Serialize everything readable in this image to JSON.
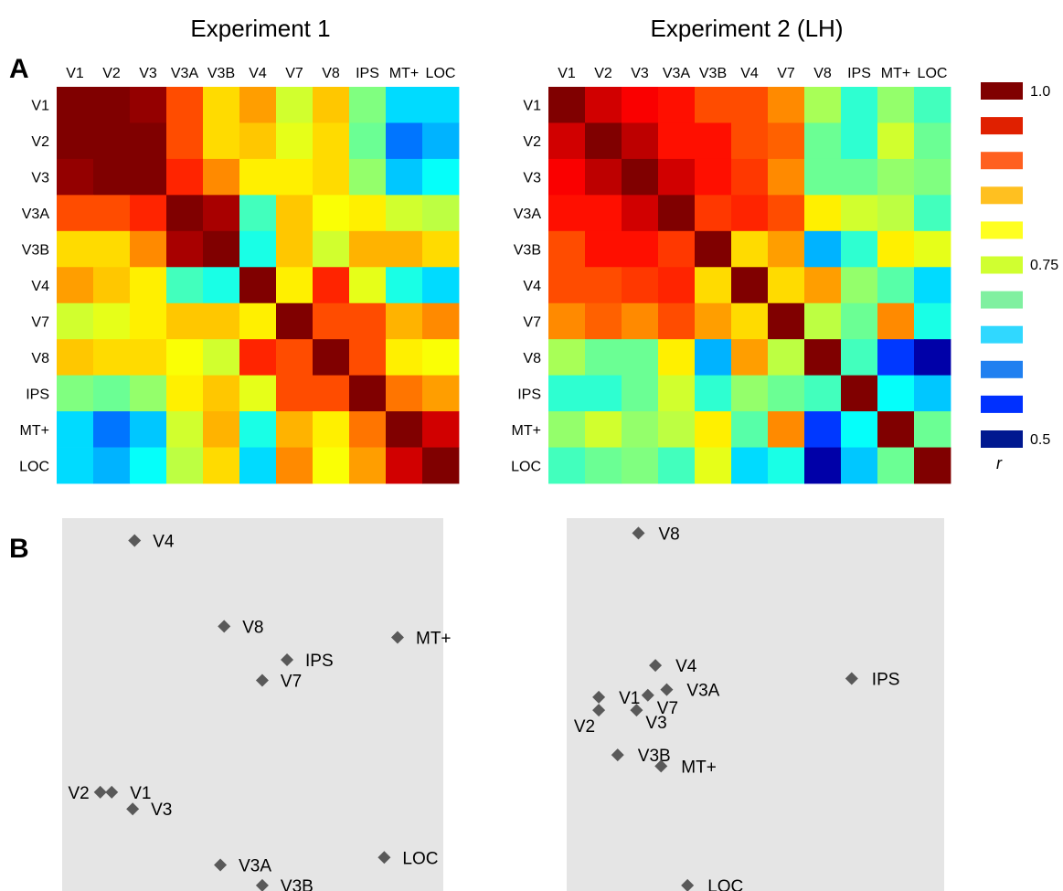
{
  "panel_labels": {
    "a": "A",
    "b": "B"
  },
  "colorbar": {
    "tick_labels": [
      "1.0",
      "0.75",
      "0.5"
    ],
    "unit": "r",
    "range": [
      0.5,
      1.0
    ],
    "swatches": [
      "#800000",
      "#e02000",
      "#ff6020",
      "#ffc020",
      "#ffff20",
      "#d0ff30",
      "#80f0a0",
      "#30d8ff",
      "#2080f0",
      "#0030ff",
      "#001890"
    ]
  },
  "chart_data": [
    {
      "type": "heatmap",
      "title": "Experiment 1",
      "regions": [
        "V1",
        "V2",
        "V3",
        "V3A",
        "V3B",
        "V4",
        "V7",
        "V8",
        "IPS",
        "MT+",
        "LOC"
      ],
      "value_range": [
        0.5,
        1.0
      ],
      "matrix": [
        [
          1.0,
          1.0,
          0.99,
          0.9,
          0.83,
          0.86,
          0.79,
          0.84,
          0.75,
          0.67,
          0.67
        ],
        [
          1.0,
          1.0,
          1.0,
          0.9,
          0.83,
          0.84,
          0.8,
          0.83,
          0.74,
          0.62,
          0.65
        ],
        [
          0.99,
          1.0,
          1.0,
          0.92,
          0.87,
          0.82,
          0.82,
          0.83,
          0.76,
          0.66,
          0.69
        ],
        [
          0.9,
          0.9,
          0.92,
          1.0,
          0.98,
          0.72,
          0.84,
          0.81,
          0.82,
          0.79,
          0.78
        ],
        [
          0.83,
          0.83,
          0.87,
          0.98,
          1.0,
          0.7,
          0.84,
          0.79,
          0.85,
          0.85,
          0.83
        ],
        [
          0.86,
          0.84,
          0.82,
          0.72,
          0.7,
          1.0,
          0.82,
          0.92,
          0.8,
          0.7,
          0.67
        ],
        [
          0.79,
          0.8,
          0.82,
          0.84,
          0.84,
          0.82,
          1.0,
          0.9,
          0.9,
          0.85,
          0.87
        ],
        [
          0.84,
          0.83,
          0.83,
          0.81,
          0.79,
          0.92,
          0.9,
          1.0,
          0.9,
          0.82,
          0.81
        ],
        [
          0.75,
          0.74,
          0.76,
          0.82,
          0.84,
          0.8,
          0.9,
          0.9,
          1.0,
          0.88,
          0.86
        ],
        [
          0.67,
          0.62,
          0.66,
          0.79,
          0.85,
          0.7,
          0.85,
          0.82,
          0.88,
          1.0,
          0.96
        ],
        [
          0.67,
          0.65,
          0.69,
          0.78,
          0.83,
          0.67,
          0.87,
          0.81,
          0.86,
          0.96,
          1.0
        ]
      ]
    },
    {
      "type": "heatmap",
      "title": "Experiment 2 (LH)",
      "regions": [
        "V1",
        "V2",
        "V3",
        "V3A",
        "V3B",
        "V4",
        "V7",
        "V8",
        "IPS",
        "MT+",
        "LOC"
      ],
      "value_range": [
        0.5,
        1.0
      ],
      "matrix": [
        [
          1.0,
          0.96,
          0.94,
          0.93,
          0.9,
          0.9,
          0.87,
          0.77,
          0.71,
          0.76,
          0.72
        ],
        [
          0.96,
          1.0,
          0.97,
          0.93,
          0.93,
          0.9,
          0.89,
          0.74,
          0.71,
          0.79,
          0.74
        ],
        [
          0.94,
          0.97,
          1.0,
          0.96,
          0.93,
          0.91,
          0.87,
          0.74,
          0.74,
          0.76,
          0.75
        ],
        [
          0.93,
          0.93,
          0.96,
          1.0,
          0.91,
          0.92,
          0.9,
          0.82,
          0.79,
          0.78,
          0.72
        ],
        [
          0.9,
          0.93,
          0.93,
          0.91,
          1.0,
          0.83,
          0.86,
          0.65,
          0.71,
          0.82,
          0.8
        ],
        [
          0.9,
          0.9,
          0.91,
          0.92,
          0.83,
          1.0,
          0.83,
          0.86,
          0.76,
          0.73,
          0.67
        ],
        [
          0.87,
          0.89,
          0.87,
          0.9,
          0.86,
          0.83,
          1.0,
          0.78,
          0.74,
          0.87,
          0.7
        ],
        [
          0.77,
          0.74,
          0.74,
          0.82,
          0.65,
          0.86,
          0.78,
          1.0,
          0.72,
          0.59,
          0.52
        ],
        [
          0.71,
          0.71,
          0.74,
          0.79,
          0.71,
          0.76,
          0.74,
          0.72,
          1.0,
          0.69,
          0.66
        ],
        [
          0.76,
          0.79,
          0.76,
          0.78,
          0.82,
          0.73,
          0.87,
          0.59,
          0.69,
          1.0,
          0.74
        ],
        [
          0.72,
          0.74,
          0.75,
          0.72,
          0.8,
          0.67,
          0.7,
          0.52,
          0.66,
          0.74,
          1.0
        ]
      ]
    },
    {
      "type": "scatter",
      "title": "",
      "xlabel": "",
      "ylabel": "",
      "xlim": [
        0,
        100
      ],
      "ylim": [
        0,
        100
      ],
      "grid": false,
      "marker": "diamond",
      "points": [
        {
          "label": "V4",
          "x": 19.0,
          "y": 94.0,
          "label_side": "right"
        },
        {
          "label": "V8",
          "x": 42.5,
          "y": 71.0,
          "label_side": "right"
        },
        {
          "label": "MT+",
          "x": 88.0,
          "y": 68.0,
          "label_side": "right"
        },
        {
          "label": "IPS",
          "x": 59.0,
          "y": 62.0,
          "label_side": "right"
        },
        {
          "label": "V7",
          "x": 52.5,
          "y": 56.5,
          "label_side": "right"
        },
        {
          "label": "V2",
          "x": 10.0,
          "y": 26.5,
          "label_side": "left"
        },
        {
          "label": "V1",
          "x": 13.0,
          "y": 26.5,
          "label_side": "right"
        },
        {
          "label": "V3",
          "x": 18.5,
          "y": 22.0,
          "label_side": "right"
        },
        {
          "label": "V3A",
          "x": 41.5,
          "y": 7.0,
          "label_side": "right"
        },
        {
          "label": "V3B",
          "x": 52.5,
          "y": 1.5,
          "label_side": "right"
        },
        {
          "label": "LOC",
          "x": 84.5,
          "y": 9.0,
          "label_side": "right"
        }
      ]
    },
    {
      "type": "scatter",
      "title": "",
      "xlabel": "",
      "ylabel": "",
      "xlim": [
        0,
        100
      ],
      "ylim": [
        0,
        100
      ],
      "grid": false,
      "marker": "diamond",
      "points": [
        {
          "label": "V8",
          "x": 19.0,
          "y": 96.0,
          "label_side": "right"
        },
        {
          "label": "V4",
          "x": 23.5,
          "y": 60.5,
          "label_side": "right"
        },
        {
          "label": "IPS",
          "x": 75.5,
          "y": 57.0,
          "label_side": "right"
        },
        {
          "label": "V3A",
          "x": 26.5,
          "y": 54.0,
          "label_side": "right"
        },
        {
          "label": "V1",
          "x": 8.5,
          "y": 52.0,
          "label_side": "right"
        },
        {
          "label": "V7",
          "x": 21.5,
          "y": 52.5,
          "label_side": "right-below"
        },
        {
          "label": "V2",
          "x": 8.5,
          "y": 48.5,
          "label_side": "below-left"
        },
        {
          "label": "V3",
          "x": 18.5,
          "y": 48.5,
          "label_side": "right-below"
        },
        {
          "label": "V3B",
          "x": 13.5,
          "y": 36.5,
          "label_side": "right"
        },
        {
          "label": "MT+",
          "x": 25.0,
          "y": 33.5,
          "label_side": "right"
        },
        {
          "label": "LOC",
          "x": 32.0,
          "y": 1.5,
          "label_side": "right"
        }
      ]
    }
  ]
}
